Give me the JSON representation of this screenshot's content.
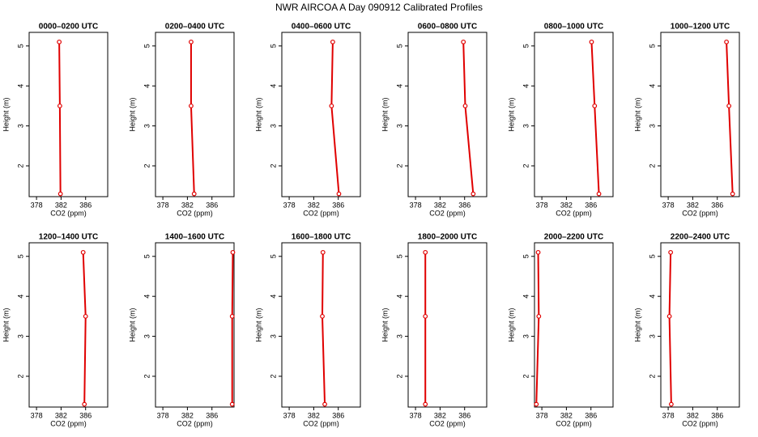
{
  "title": "NWR AIRCOA A  Day 090912  Calibrated Profiles",
  "chart_data": [
    {
      "type": "line",
      "title": "0000–0200 UTC",
      "x": [
        381.9,
        381.8,
        381.7
      ],
      "values": [
        1.3,
        3.5,
        5.1
      ],
      "color": "#e00000",
      "xlabel": "CO2 (ppm)",
      "ylabel": "Height (m)",
      "xlim": [
        376.8,
        389.6
      ],
      "ylim": [
        1.23,
        5.34
      ],
      "xticks": [
        378,
        382,
        386
      ],
      "yticks": [
        2,
        3,
        4,
        5
      ]
    },
    {
      "type": "line",
      "title": "0200–0400 UTC",
      "x": [
        383.1,
        382.6,
        382.6
      ],
      "values": [
        1.3,
        3.5,
        5.1
      ],
      "color": "#e00000",
      "xlabel": "CO2 (ppm)",
      "ylabel": "Height (m)",
      "xlim": [
        376.8,
        389.6
      ],
      "ylim": [
        1.23,
        5.34
      ],
      "xticks": [
        378,
        382,
        386
      ],
      "yticks": [
        2,
        3,
        4,
        5
      ]
    },
    {
      "type": "line",
      "title": "0400–0600 UTC",
      "x": [
        386.1,
        384.9,
        385.1
      ],
      "values": [
        1.3,
        3.5,
        5.1
      ],
      "color": "#e00000",
      "xlabel": "CO2 (ppm)",
      "ylabel": "Height (m)",
      "xlim": [
        376.8,
        389.6
      ],
      "ylim": [
        1.23,
        5.34
      ],
      "xticks": [
        378,
        382,
        386
      ],
      "yticks": [
        2,
        3,
        4,
        5
      ]
    },
    {
      "type": "line",
      "title": "0600–0800 UTC",
      "x": [
        387.4,
        386.1,
        385.8
      ],
      "values": [
        1.3,
        3.5,
        5.1
      ],
      "color": "#e00000",
      "xlabel": "CO2 (ppm)",
      "ylabel": "Height (m)",
      "xlim": [
        376.8,
        389.6
      ],
      "ylim": [
        1.23,
        5.34
      ],
      "xticks": [
        378,
        382,
        386
      ],
      "yticks": [
        2,
        3,
        4,
        5
      ]
    },
    {
      "type": "line",
      "title": "0800–1000 UTC",
      "x": [
        387.3,
        386.6,
        386.1
      ],
      "values": [
        1.3,
        3.5,
        5.1
      ],
      "color": "#e00000",
      "xlabel": "CO2 (ppm)",
      "ylabel": "Height (m)",
      "xlim": [
        376.8,
        389.6
      ],
      "ylim": [
        1.23,
        5.34
      ],
      "xticks": [
        378,
        382,
        386
      ],
      "yticks": [
        2,
        3,
        4,
        5
      ]
    },
    {
      "type": "line",
      "title": "1000–1200 UTC",
      "x": [
        388.5,
        387.9,
        387.5
      ],
      "values": [
        1.3,
        3.5,
        5.1
      ],
      "color": "#e00000",
      "xlabel": "CO2 (ppm)",
      "ylabel": "Height (m)",
      "xlim": [
        376.8,
        389.6
      ],
      "ylim": [
        1.23,
        5.34
      ],
      "xticks": [
        378,
        382,
        386
      ],
      "yticks": [
        2,
        3,
        4,
        5
      ]
    },
    {
      "type": "line",
      "title": "1200–1400 UTC",
      "x": [
        385.8,
        386.0,
        385.6
      ],
      "values": [
        1.3,
        3.5,
        5.1
      ],
      "color": "#e00000",
      "xlabel": "CO2 (ppm)",
      "ylabel": "Height (m)",
      "xlim": [
        376.8,
        389.6
      ],
      "ylim": [
        1.23,
        5.34
      ],
      "xticks": [
        378,
        382,
        386
      ],
      "yticks": [
        2,
        3,
        4,
        5
      ]
    },
    {
      "type": "line",
      "title": "1400–1600 UTC",
      "x": [
        389.3,
        389.3,
        389.4
      ],
      "values": [
        1.3,
        3.5,
        5.1
      ],
      "color": "#e00000",
      "xlabel": "CO2 (ppm)",
      "ylabel": "Height (m)",
      "xlim": [
        376.8,
        389.6
      ],
      "ylim": [
        1.23,
        5.34
      ],
      "xticks": [
        378,
        382,
        386
      ],
      "yticks": [
        2,
        3,
        4,
        5
      ]
    },
    {
      "type": "line",
      "title": "1600–1800 UTC",
      "x": [
        383.8,
        383.4,
        383.5
      ],
      "values": [
        1.3,
        3.5,
        5.1
      ],
      "color": "#e00000",
      "xlabel": "CO2 (ppm)",
      "ylabel": "Height (m)",
      "xlim": [
        376.8,
        389.6
      ],
      "ylim": [
        1.23,
        5.34
      ],
      "xticks": [
        378,
        382,
        386
      ],
      "yticks": [
        2,
        3,
        4,
        5
      ]
    },
    {
      "type": "line",
      "title": "1800–2000 UTC",
      "x": [
        379.6,
        379.6,
        379.6
      ],
      "values": [
        1.3,
        3.5,
        5.1
      ],
      "color": "#e00000",
      "xlabel": "CO2 (ppm)",
      "ylabel": "Height (m)",
      "xlim": [
        376.8,
        389.6
      ],
      "ylim": [
        1.23,
        5.34
      ],
      "xticks": [
        378,
        382,
        386
      ],
      "yticks": [
        2,
        3,
        4,
        5
      ]
    },
    {
      "type": "line",
      "title": "2000–2200 UTC",
      "x": [
        377.1,
        377.5,
        377.4
      ],
      "values": [
        1.3,
        3.5,
        5.1
      ],
      "color": "#e00000",
      "xlabel": "CO2 (ppm)",
      "ylabel": "Height (m)",
      "xlim": [
        376.8,
        389.6
      ],
      "ylim": [
        1.23,
        5.34
      ],
      "xticks": [
        378,
        382,
        386
      ],
      "yticks": [
        2,
        3,
        4,
        5
      ]
    },
    {
      "type": "line",
      "title": "2200–2400 UTC",
      "x": [
        378.5,
        378.2,
        378.4
      ],
      "values": [
        1.3,
        3.5,
        5.1
      ],
      "color": "#e00000",
      "xlabel": "CO2 (ppm)",
      "ylabel": "Height (m)",
      "xlim": [
        376.8,
        389.6
      ],
      "ylim": [
        1.23,
        5.34
      ],
      "xticks": [
        378,
        382,
        386
      ],
      "yticks": [
        2,
        3,
        4,
        5
      ]
    }
  ]
}
